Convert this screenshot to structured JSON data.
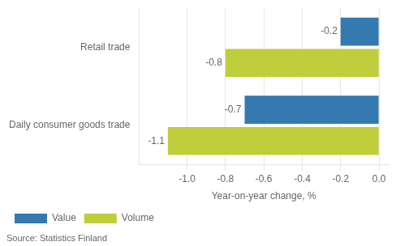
{
  "chart_data": {
    "type": "bar",
    "orientation": "horizontal",
    "categories": [
      "Daily consumer goods trade",
      "Retail trade"
    ],
    "series": [
      {
        "name": "Value",
        "color": "#3579B1",
        "values": [
          -0.7,
          -0.2
        ]
      },
      {
        "name": "Volume",
        "color": "#BFCE3A",
        "values": [
          -1.1,
          -0.8
        ]
      }
    ],
    "xlabel": "Year-on-year change, %",
    "xlim": [
      -1.25,
      0.05
    ],
    "xticks": [
      {
        "value": -1.0,
        "label": "-1.0"
      },
      -0.8,
      -0.6,
      -0.4,
      -0.2,
      {
        "value": 0.0,
        "label": "0.0"
      }
    ],
    "grid": true,
    "legend": "lower left",
    "data_labels": true,
    "source": "Source: Statistics Finland"
  }
}
